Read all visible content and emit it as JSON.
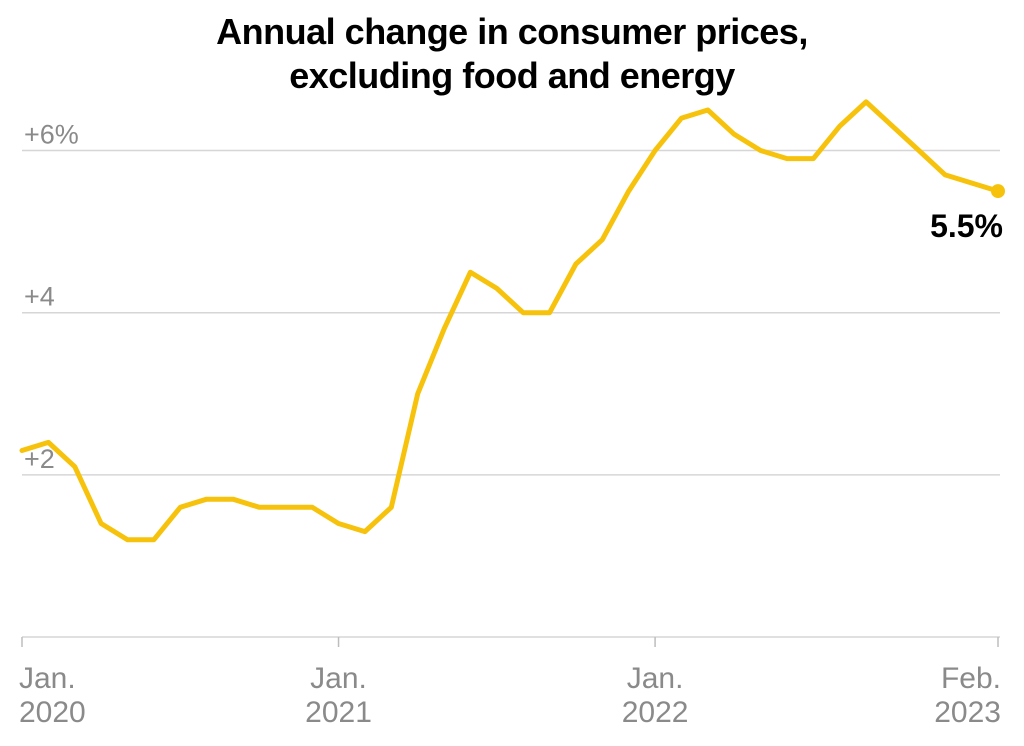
{
  "title": {
    "line1": "Annual change in consumer prices,",
    "line2": "excluding food and energy"
  },
  "colors": {
    "line": "#f7c20c",
    "grid": "#d6d6d6",
    "axis_text": "#8a8a8a",
    "title": "#000000"
  },
  "chart_data": {
    "type": "line",
    "title": "Annual change in consumer prices, excluding food and energy",
    "xlabel": "",
    "ylabel": "",
    "grid": true,
    "ylim": [
      0,
      6.5
    ],
    "yticks": [
      {
        "value": 6,
        "label": "+6%"
      },
      {
        "value": 4,
        "label": "+4"
      },
      {
        "value": 2,
        "label": "+2"
      }
    ],
    "xticks": [
      {
        "date": "2020-01",
        "line1": "Jan.",
        "line2": "2020"
      },
      {
        "date": "2021-01",
        "line1": "Jan.",
        "line2": "2021"
      },
      {
        "date": "2022-01",
        "line1": "Jan.",
        "line2": "2022"
      },
      {
        "date": "2023-02",
        "line1": "Feb.",
        "line2": "2023"
      }
    ],
    "x": [
      "2020-01",
      "2020-02",
      "2020-03",
      "2020-04",
      "2020-05",
      "2020-06",
      "2020-07",
      "2020-08",
      "2020-09",
      "2020-10",
      "2020-11",
      "2020-12",
      "2021-01",
      "2021-02",
      "2021-03",
      "2021-04",
      "2021-05",
      "2021-06",
      "2021-07",
      "2021-08",
      "2021-09",
      "2021-10",
      "2021-11",
      "2021-12",
      "2022-01",
      "2022-02",
      "2022-03",
      "2022-04",
      "2022-05",
      "2022-06",
      "2022-07",
      "2022-08",
      "2022-09",
      "2022-10",
      "2022-11",
      "2022-12",
      "2023-01",
      "2023-02"
    ],
    "series": [
      {
        "values": [
          2.3,
          2.4,
          2.1,
          1.4,
          1.2,
          1.2,
          1.6,
          1.7,
          1.7,
          1.6,
          1.6,
          1.6,
          1.4,
          1.3,
          1.6,
          3.0,
          3.8,
          4.5,
          4.3,
          4.0,
          4.0,
          4.6,
          4.9,
          5.5,
          6.0,
          6.4,
          6.5,
          6.2,
          6.0,
          5.9,
          5.9,
          6.3,
          6.6,
          6.3,
          6.0,
          5.7,
          5.6,
          5.5
        ]
      }
    ],
    "end_label": "5.5%"
  }
}
